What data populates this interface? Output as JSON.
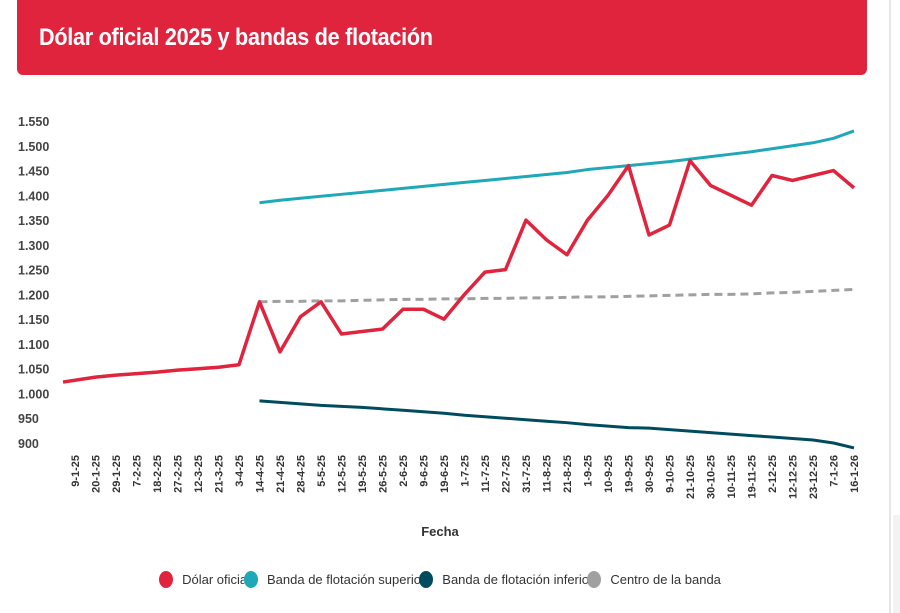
{
  "header": {
    "title": "Dólar oficial 2025 y bandas de flotación"
  },
  "chart_data": {
    "type": "line",
    "title": "Dólar oficial 2025 y bandas de flotación",
    "xlabel": "Fecha",
    "ylabel": "",
    "ylim": [
      900,
      1550
    ],
    "yticks": [
      900,
      950,
      1000,
      1050,
      1100,
      1150,
      1200,
      1250,
      1300,
      1350,
      1400,
      1450,
      1500,
      1550
    ],
    "ytick_labels": [
      "900",
      "950",
      "1.000",
      "1.050",
      "1.100",
      "1.150",
      "1.200",
      "1.250",
      "1.300",
      "1.350",
      "1.400",
      "1.450",
      "1.500",
      "1.550"
    ],
    "grid": false,
    "legend_position": "bottom",
    "categories": [
      "9-1-25",
      "20-1-25",
      "29-1-25",
      "7-2-25",
      "18-2-25",
      "27-2-25",
      "12-3-25",
      "21-3-25",
      "3-4-25",
      "14-4-25",
      "21-4-25",
      "28-4-25",
      "5-5-25",
      "12-5-25",
      "19-5-25",
      "26-5-25",
      "2-6-25",
      "9-6-25",
      "19-6-25",
      "1-7-25",
      "11-7-25",
      "22-7-25",
      "31-7-25",
      "11-8-25",
      "21-8-25",
      "1-9-25",
      "10-9-25",
      "19-9-25",
      "30-9-25",
      "9-10-25",
      "21-10-25",
      "30-10-25",
      "10-11-25",
      "19-11-25",
      "2-12-25",
      "12-12-25",
      "23-12-25",
      "7-1-26",
      "16-1-26"
    ],
    "series": [
      {
        "name": "Dólar oficial",
        "color": "#e0243d",
        "dashed": false,
        "values": [
          1023,
          1033,
          1037,
          1040,
          1043,
          1047,
          1050,
          1053,
          1058,
          1185,
          1084,
          1155,
          1185,
          1120,
          1125,
          1130,
          1170,
          1170,
          1150,
          1200,
          1245,
          1250,
          1350,
          1310,
          1280,
          1350,
          1400,
          1460,
          1320,
          1340,
          1470,
          1420,
          1400,
          1380,
          1440,
          1430,
          1440,
          1450,
          1415
        ]
      },
      {
        "name": "Banda de flotación superior",
        "color": "#1fa8b8",
        "dashed": false,
        "values": [
          null,
          null,
          null,
          null,
          null,
          null,
          null,
          null,
          null,
          1385,
          1390,
          1394,
          1398,
          1402,
          1406,
          1410,
          1414,
          1418,
          1422,
          1426,
          1430,
          1434,
          1438,
          1442,
          1446,
          1452,
          1456,
          1460,
          1464,
          1468,
          1473,
          1478,
          1483,
          1488,
          1494,
          1500,
          1506,
          1515,
          1530
        ]
      },
      {
        "name": "Banda de flotación inferior",
        "color": "#004c5e",
        "dashed": false,
        "values": [
          null,
          null,
          null,
          null,
          null,
          null,
          null,
          null,
          null,
          985,
          982,
          979,
          976,
          974,
          972,
          969,
          966,
          963,
          960,
          956,
          953,
          950,
          947,
          944,
          941,
          937,
          934,
          931,
          930,
          927,
          924,
          921,
          918,
          915,
          912,
          909,
          906,
          900,
          890
        ]
      },
      {
        "name": "Centro de la banda",
        "color": "#a0a0a0",
        "dashed": true,
        "values": [
          null,
          null,
          null,
          null,
          null,
          null,
          null,
          null,
          null,
          1185,
          1186,
          1186,
          1187,
          1187,
          1188,
          1189,
          1190,
          1190,
          1191,
          1191,
          1192,
          1192,
          1193,
          1193,
          1194,
          1195,
          1195,
          1196,
          1197,
          1198,
          1199,
          1200,
          1200,
          1201,
          1203,
          1204,
          1206,
          1208,
          1210
        ]
      }
    ]
  }
}
